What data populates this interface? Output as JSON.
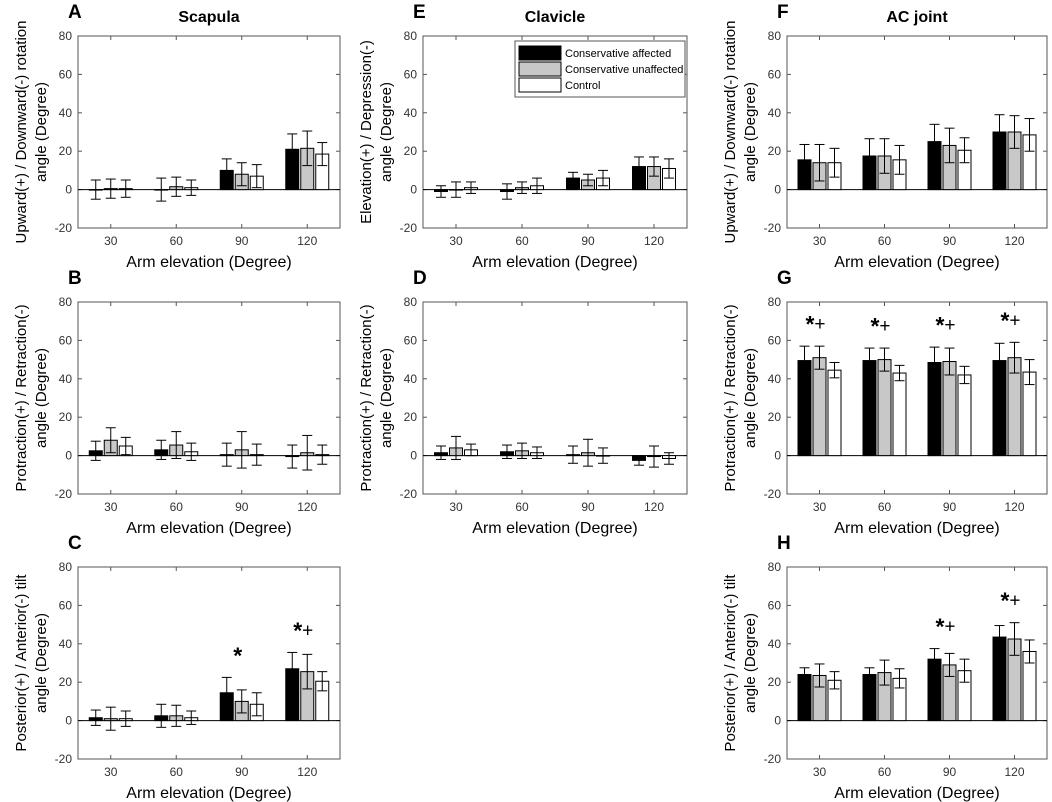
{
  "figure": {
    "xlabel": "Arm elevation (Degree)",
    "legend": [
      {
        "name": "Conservative affected",
        "color": "#000000"
      },
      {
        "name": "Conservative unaffected",
        "color": "#c8c8c8"
      },
      {
        "name": "Control",
        "color": "#ffffff"
      }
    ]
  },
  "chart_data": [
    {
      "id": "A",
      "letter": "A",
      "title": "Scapula",
      "type": "bar",
      "ylabel": [
        "Upward(+) / Downward(-) rotation",
        "angle (Degree)"
      ],
      "ylim": [
        -20,
        80
      ],
      "yticks": [
        -20,
        0,
        20,
        40,
        60,
        80
      ],
      "categories": [
        "30",
        "60",
        "90",
        "120"
      ],
      "series": [
        {
          "name": "Conservative affected",
          "values": [
            0,
            0,
            10,
            21
          ],
          "errors": [
            5,
            6,
            6,
            8
          ]
        },
        {
          "name": "Conservative unaffected",
          "values": [
            0.5,
            1.5,
            8,
            21.5
          ],
          "errors": [
            5,
            5,
            6,
            9
          ]
        },
        {
          "name": "Control",
          "values": [
            0.5,
            1,
            7,
            18.5
          ],
          "errors": [
            4.5,
            4,
            6,
            6
          ]
        }
      ],
      "annotations": [],
      "show_legend": false
    },
    {
      "id": "E",
      "letter": "E",
      "title": "Clavicle",
      "type": "bar",
      "ylabel": [
        "Elevation(+) / Depression(-)",
        "angle (Degree)"
      ],
      "ylim": [
        -20,
        80
      ],
      "yticks": [
        -20,
        0,
        20,
        40,
        60,
        80
      ],
      "categories": [
        "30",
        "60",
        "90",
        "120"
      ],
      "series": [
        {
          "name": "Conservative affected",
          "values": [
            -1,
            -1,
            6,
            12
          ],
          "errors": [
            3,
            4,
            3,
            5
          ]
        },
        {
          "name": "Conservative unaffected",
          "values": [
            0,
            1,
            5,
            12
          ],
          "errors": [
            4,
            3,
            3,
            5
          ]
        },
        {
          "name": "Control",
          "values": [
            1,
            2,
            6,
            11
          ],
          "errors": [
            3,
            4,
            4,
            5
          ]
        }
      ],
      "annotations": [],
      "show_legend": true
    },
    {
      "id": "F",
      "letter": "F",
      "title": "AC joint",
      "type": "bar",
      "ylabel": [
        "Upward(+) / Downward(-) rotation",
        "angle (Degree)"
      ],
      "ylim": [
        -20,
        80
      ],
      "yticks": [
        -20,
        0,
        20,
        40,
        60,
        80
      ],
      "categories": [
        "30",
        "60",
        "90",
        "120"
      ],
      "series": [
        {
          "name": "Conservative affected",
          "values": [
            15.5,
            17.5,
            25,
            30
          ],
          "errors": [
            8,
            9,
            9,
            9
          ]
        },
        {
          "name": "Conservative unaffected",
          "values": [
            14,
            17.5,
            23,
            30
          ],
          "errors": [
            9.5,
            9,
            9,
            8.5
          ]
        },
        {
          "name": "Control",
          "values": [
            14,
            15.5,
            20.5,
            28.5
          ],
          "errors": [
            7.5,
            7.5,
            6.5,
            8.5
          ]
        }
      ],
      "annotations": [],
      "show_legend": false
    },
    {
      "id": "B",
      "letter": "B",
      "title": "",
      "type": "bar",
      "ylabel": [
        "Protraction(+) / Retraction(-)",
        "angle (Degree)"
      ],
      "ylim": [
        -20,
        80
      ],
      "yticks": [
        -20,
        0,
        20,
        40,
        60,
        80
      ],
      "categories": [
        "30",
        "60",
        "90",
        "120"
      ],
      "series": [
        {
          "name": "Conservative affected",
          "values": [
            2.5,
            3,
            0.5,
            -0.5
          ],
          "errors": [
            5,
            5,
            6,
            6
          ]
        },
        {
          "name": "Conservative unaffected",
          "values": [
            8,
            5.5,
            3,
            1.5
          ],
          "errors": [
            6.5,
            7,
            9.5,
            9
          ]
        },
        {
          "name": "Control",
          "values": [
            5,
            2,
            0.5,
            0.5
          ],
          "errors": [
            4.5,
            4.5,
            5.5,
            5
          ]
        }
      ],
      "annotations": [],
      "show_legend": false
    },
    {
      "id": "D",
      "letter": "D",
      "title": "",
      "type": "bar",
      "ylabel": [
        "Protraction(+) / Retraction(-)",
        "angle (Degree)"
      ],
      "ylim": [
        -20,
        80
      ],
      "yticks": [
        -20,
        0,
        20,
        40,
        60,
        80
      ],
      "categories": [
        "30",
        "60",
        "90",
        "120"
      ],
      "series": [
        {
          "name": "Conservative affected",
          "values": [
            1.5,
            2,
            0.5,
            -2.5
          ],
          "errors": [
            3.5,
            3.5,
            4.5,
            2.5
          ]
        },
        {
          "name": "Conservative unaffected",
          "values": [
            4,
            2.5,
            1.5,
            -0.5
          ],
          "errors": [
            6,
            4,
            7,
            5.5
          ]
        },
        {
          "name": "Control",
          "values": [
            3,
            1.5,
            0,
            -1.5
          ],
          "errors": [
            3,
            3,
            4,
            3
          ]
        }
      ],
      "annotations": [],
      "show_legend": false
    },
    {
      "id": "G",
      "letter": "G",
      "title": "",
      "type": "bar",
      "ylabel": [
        "Protraction(+) / Retraction(-)",
        "angle (Degree)"
      ],
      "ylim": [
        -20,
        80
      ],
      "yticks": [
        -20,
        0,
        20,
        40,
        60,
        80
      ],
      "categories": [
        "30",
        "60",
        "90",
        "120"
      ],
      "series": [
        {
          "name": "Conservative affected",
          "values": [
            49.5,
            49.5,
            48.5,
            49.5
          ],
          "errors": [
            7.5,
            6.5,
            8,
            9
          ]
        },
        {
          "name": "Conservative unaffected",
          "values": [
            51,
            50,
            49,
            51
          ],
          "errors": [
            6,
            6,
            7,
            8
          ]
        },
        {
          "name": "Control",
          "values": [
            44.5,
            43,
            42,
            43.5
          ],
          "errors": [
            4,
            4,
            4.5,
            6.5
          ]
        }
      ],
      "annotations": [
        {
          "category": 0,
          "star": "*",
          "plus": "+"
        },
        {
          "category": 1,
          "star": "*",
          "plus": "+"
        },
        {
          "category": 2,
          "star": "*",
          "plus": "+"
        },
        {
          "category": 3,
          "star": "*",
          "plus": "+"
        }
      ],
      "show_legend": false
    },
    {
      "id": "C",
      "letter": "C",
      "title": "",
      "type": "bar",
      "ylabel": [
        "Posterior(+) / Anterior(-) tilt",
        "angle (Degree)"
      ],
      "ylim": [
        -20,
        80
      ],
      "yticks": [
        -20,
        0,
        20,
        40,
        60,
        80
      ],
      "categories": [
        "30",
        "60",
        "90",
        "120"
      ],
      "series": [
        {
          "name": "Conservative affected",
          "values": [
            1.5,
            2.5,
            14.5,
            27
          ],
          "errors": [
            4,
            6,
            8,
            8.5
          ]
        },
        {
          "name": "Conservative unaffected",
          "values": [
            1,
            2.5,
            10,
            25.5
          ],
          "errors": [
            6,
            5.5,
            6,
            9
          ]
        },
        {
          "name": "Control",
          "values": [
            1,
            1.5,
            8.5,
            20.5
          ],
          "errors": [
            4,
            3.5,
            6,
            5
          ]
        }
      ],
      "annotations": [
        {
          "category": 2,
          "star": "*",
          "plus": ""
        },
        {
          "category": 3,
          "star": "*",
          "plus": "+"
        }
      ],
      "show_legend": false
    },
    {
      "id": "H",
      "letter": "H",
      "title": "",
      "type": "bar",
      "ylabel": [
        "Posterior(+) / Anterior(-) tilt",
        "angle (Degree)"
      ],
      "ylim": [
        -20,
        80
      ],
      "yticks": [
        -20,
        0,
        20,
        40,
        60,
        80
      ],
      "categories": [
        "30",
        "60",
        "90",
        "120"
      ],
      "series": [
        {
          "name": "Conservative affected",
          "values": [
            24,
            24,
            32,
            43.5
          ],
          "errors": [
            3.5,
            3.5,
            5.5,
            6
          ]
        },
        {
          "name": "Conservative unaffected",
          "values": [
            23.5,
            25,
            29,
            42.5
          ],
          "errors": [
            6,
            6.5,
            6,
            8.5
          ]
        },
        {
          "name": "Control",
          "values": [
            21,
            22,
            26,
            36
          ],
          "errors": [
            4.5,
            5,
            6,
            6
          ]
        }
      ],
      "annotations": [
        {
          "category": 2,
          "star": "*",
          "plus": "+"
        },
        {
          "category": 3,
          "star": "*",
          "plus": "+"
        }
      ],
      "show_legend": false
    }
  ]
}
